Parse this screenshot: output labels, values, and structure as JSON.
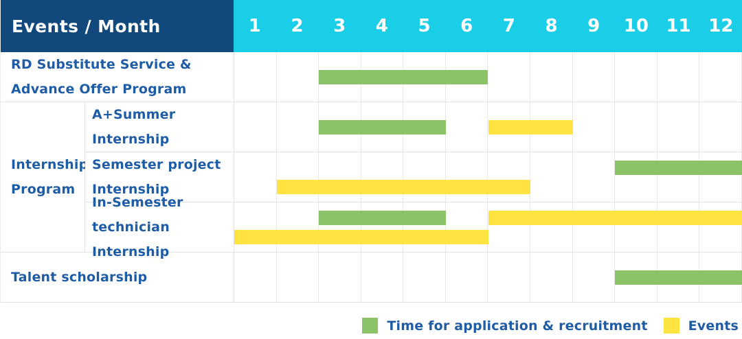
{
  "header": {
    "row_label": "Events / Month",
    "months": [
      "1",
      "2",
      "3",
      "4",
      "5",
      "6",
      "7",
      "8",
      "9",
      "10",
      "11",
      "12"
    ]
  },
  "colors": {
    "header_navy": "#12497C",
    "header_cyan": "#1BCEE7",
    "application_green": "#8BC368",
    "events_yellow": "#FFE341",
    "label_blue": "#1E5CA5",
    "grid_line": "#E8E8E8"
  },
  "chart_data": {
    "type": "bar",
    "subtype": "gantt-schedule",
    "title": "Events / Month",
    "x_axis": {
      "unit": "month",
      "min": 1,
      "max": 12,
      "ticks": [
        "1",
        "2",
        "3",
        "4",
        "5",
        "6",
        "7",
        "8",
        "9",
        "10",
        "11",
        "12"
      ]
    },
    "group_label": "Internship Program",
    "group_label_lines": [
      "Internship",
      "Program"
    ],
    "rows": [
      {
        "group": "",
        "label": "RD Substitute Service & Advance Offer Program",
        "label_lines": [
          "RD Substitute Service &",
          "Advance Offer Program"
        ],
        "bars": [
          {
            "series": "application",
            "start_month": 3,
            "end_month": 6,
            "line": "center"
          }
        ]
      },
      {
        "group": "Internship Program",
        "label": "A+Summer Internship",
        "label_lines": [
          "A+Summer",
          "Internship"
        ],
        "bars": [
          {
            "series": "application",
            "start_month": 3,
            "end_month": 5,
            "line": "center"
          },
          {
            "series": "events",
            "start_month": 7,
            "end_month": 8,
            "line": "center"
          }
        ]
      },
      {
        "group": "Internship Program",
        "label": "Semester project Internship",
        "label_lines": [
          "Semester project",
          "Internship"
        ],
        "bars": [
          {
            "series": "application",
            "start_month": 10,
            "end_month": 12,
            "line": "upper"
          },
          {
            "series": "events",
            "start_month": 2,
            "end_month": 7,
            "line": "lower"
          }
        ]
      },
      {
        "group": "Internship Program",
        "label": "In-Semester technician Internship",
        "label_lines": [
          "In-Semester",
          "technician Internship"
        ],
        "bars": [
          {
            "series": "application",
            "start_month": 3,
            "end_month": 5,
            "line": "upper"
          },
          {
            "series": "events",
            "start_month": 7,
            "end_month": 12,
            "line": "upper"
          },
          {
            "series": "events",
            "start_month": 1,
            "end_month": 6,
            "line": "lower"
          }
        ]
      },
      {
        "group": "",
        "label": "Talent scholarship",
        "label_lines": [
          "Talent scholarship"
        ],
        "bars": [
          {
            "series": "application",
            "start_month": 10,
            "end_month": 12,
            "line": "center"
          }
        ]
      }
    ],
    "legend": [
      {
        "series": "application",
        "label": "Time for application & recruitment",
        "color": "#8BC368"
      },
      {
        "series": "events",
        "label": "Events",
        "color": "#FFE341"
      }
    ]
  }
}
